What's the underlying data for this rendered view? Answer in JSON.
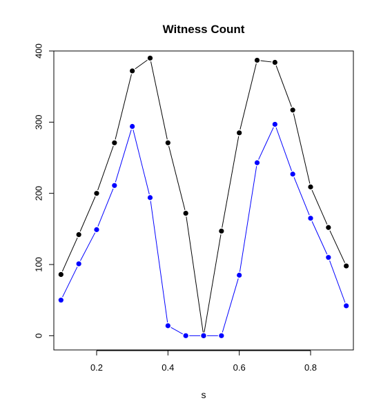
{
  "chart_data": {
    "type": "line",
    "title": "Witness Count",
    "xlabel": "s",
    "ylabel": "",
    "xlim": [
      0.08,
      0.92
    ],
    "ylim": [
      -20,
      400
    ],
    "x_ticks": [
      0.2,
      0.4,
      0.6,
      0.8
    ],
    "x_tick_labels": [
      "0.2",
      "0.4",
      "0.6",
      "0.8"
    ],
    "y_ticks": [
      0,
      100,
      200,
      300,
      400
    ],
    "y_tick_labels": [
      "0",
      "100",
      "200",
      "300",
      "400"
    ],
    "grid": false,
    "x": [
      0.1,
      0.15,
      0.2,
      0.25,
      0.3,
      0.35,
      0.4,
      0.45,
      0.5,
      0.55,
      0.6,
      0.65,
      0.7,
      0.75,
      0.8,
      0.85,
      0.9
    ],
    "series": [
      {
        "color": "#000000",
        "values": [
          86,
          142,
          200,
          271,
          372,
          390,
          271,
          172,
          0,
          147,
          285,
          387,
          384,
          317,
          209,
          152,
          98
        ]
      },
      {
        "color": "#0000ff",
        "values": [
          50,
          101,
          149,
          211,
          294,
          194,
          14,
          0,
          0,
          0,
          85,
          243,
          297,
          227,
          165,
          110,
          42
        ]
      }
    ]
  }
}
